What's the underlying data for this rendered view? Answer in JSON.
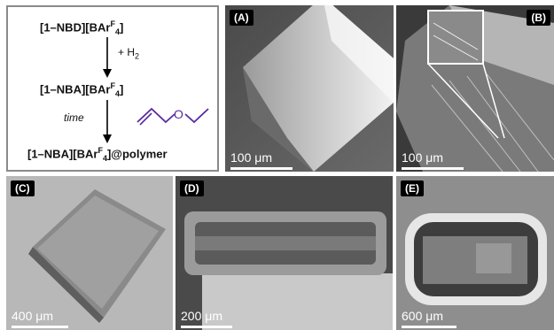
{
  "scheme": {
    "line1": "[1–NBD][BArF4]",
    "h2": "+ H2",
    "line2": "[1–NBA][BArF4]",
    "time": "time",
    "line3": "[1–NBA][BArF4]@polymer",
    "reagent_color": "#5a2ca0"
  },
  "panels": [
    {
      "label": "(A)",
      "scale": "100 μm"
    },
    {
      "label": "(B)",
      "scale": "100 μm"
    },
    {
      "label": "(C)",
      "scale": "400 μm"
    },
    {
      "label": "(D)",
      "scale": "200 μm"
    },
    {
      "label": "(E)",
      "scale": "600 μm"
    }
  ]
}
